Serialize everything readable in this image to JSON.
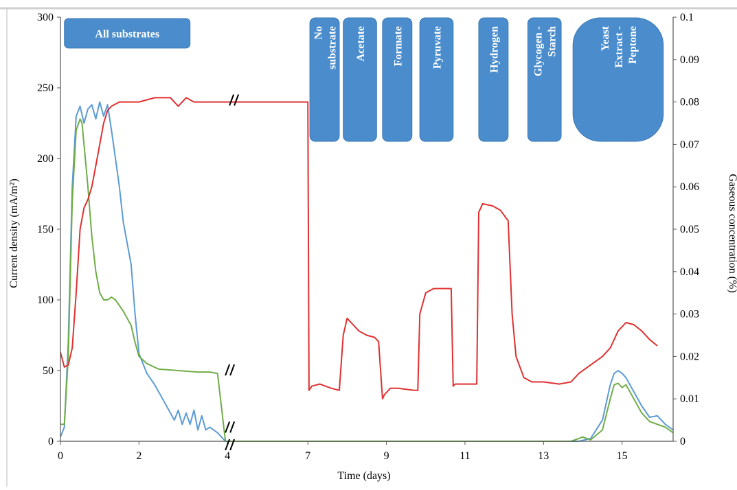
{
  "chart_data": {
    "type": "line",
    "xlabel": "Time (days)",
    "ylabel": "Current density (mA/m²)",
    "y2label": "Gaseous concentration (%)",
    "x_ticks": [
      "0",
      "2",
      "4",
      "7",
      "9",
      "11",
      "13",
      "15"
    ],
    "x_range": [
      0,
      15.6
    ],
    "x_break": [
      4.2,
      6.3
    ],
    "ylim": [
      0,
      300
    ],
    "y_ticks": [
      "0",
      "50",
      "100",
      "150",
      "200",
      "250",
      "300"
    ],
    "y2lim": [
      0,
      0.1
    ],
    "y2_ticks": [
      "0",
      "0.01",
      "0.02",
      "0.03",
      "0.04",
      "0.05",
      "0.06",
      "0.07",
      "0.08",
      "0.09",
      "0.1"
    ],
    "grid": false,
    "legend": "none",
    "colors": {
      "blue": "#5b9bd5",
      "red": "#e03030",
      "green": "#70ad47",
      "box": "#4a8ccc"
    },
    "annotations": [
      {
        "label": "All substrates",
        "x_start": 0.1,
        "x_end": 3.3,
        "orientation": "horizontal"
      },
      {
        "label": "No substrate",
        "x_start": 6.35,
        "x_end": 7.1,
        "orientation": "vertical"
      },
      {
        "label": "Acetate",
        "x_start": 7.2,
        "x_end": 8.05,
        "orientation": "vertical"
      },
      {
        "label": "Formate",
        "x_start": 8.2,
        "x_end": 8.95,
        "orientation": "vertical"
      },
      {
        "label": "Pyruvate",
        "x_start": 9.15,
        "x_end": 10.0,
        "orientation": "vertical"
      },
      {
        "label": "Hydrogen",
        "x_start": 10.65,
        "x_end": 11.4,
        "orientation": "vertical"
      },
      {
        "label": "Glycogen - Starch",
        "x_start": 11.9,
        "x_end": 12.75,
        "orientation": "vertical"
      },
      {
        "label": "Yeast Extract - Peptone",
        "x_start": 13.05,
        "x_end": 15.35,
        "orientation": "vertical"
      }
    ],
    "series": [
      {
        "color": "blue",
        "axis": "left",
        "x": [
          0,
          0.1,
          0.2,
          0.3,
          0.4,
          0.5,
          0.6,
          0.7,
          0.8,
          0.9,
          1.0,
          1.1,
          1.2,
          1.3,
          1.4,
          1.5,
          1.6,
          1.7,
          1.8,
          1.9,
          2.0,
          2.1,
          2.2,
          2.4,
          2.6,
          2.8,
          2.9,
          3.0,
          3.1,
          3.2,
          3.3,
          3.4,
          3.5,
          3.6,
          3.7,
          3.8,
          3.9,
          4.0,
          4.2,
          6.3,
          6.5,
          7.0,
          8.0,
          9.0,
          10.0,
          11.0,
          12.0,
          13.0,
          13.2,
          13.5,
          13.8,
          14.0,
          14.1,
          14.2,
          14.3,
          14.4,
          14.6,
          14.8,
          15.0,
          15.2,
          15.4,
          15.6
        ],
        "y": [
          3,
          10,
          70,
          180,
          230,
          237,
          225,
          235,
          238,
          228,
          240,
          230,
          238,
          220,
          200,
          180,
          155,
          140,
          125,
          90,
          62,
          55,
          48,
          40,
          30,
          20,
          15,
          22,
          12,
          20,
          12,
          22,
          8,
          18,
          8,
          10,
          8,
          6,
          0,
          0,
          0,
          0,
          0,
          0,
          0,
          0,
          0,
          0,
          0,
          2,
          15,
          40,
          48,
          50,
          48,
          45,
          35,
          25,
          17,
          18,
          12,
          8
        ]
      },
      {
        "color": "green",
        "axis": "left",
        "x": [
          0,
          0.1,
          0.2,
          0.3,
          0.4,
          0.5,
          0.55,
          0.6,
          0.7,
          0.8,
          0.9,
          1.0,
          1.1,
          1.2,
          1.3,
          1.4,
          1.5,
          1.6,
          1.7,
          1.8,
          1.9,
          2.0,
          2.2,
          2.5,
          3.0,
          3.5,
          3.8,
          4.0,
          4.2,
          6.3,
          7.0,
          8.0,
          9.0,
          10.0,
          11.0,
          12.0,
          13.0,
          13.2,
          13.3,
          13.5,
          13.8,
          14.0,
          14.1,
          14.2,
          14.3,
          14.4,
          14.6,
          14.8,
          15.0,
          15.2,
          15.4,
          15.6
        ],
        "y": [
          12,
          12,
          60,
          170,
          220,
          228,
          225,
          210,
          180,
          145,
          120,
          105,
          100,
          100,
          102,
          100,
          96,
          92,
          87,
          82,
          70,
          60,
          55,
          51,
          50,
          49,
          49,
          48,
          0,
          0,
          0,
          0,
          0,
          0,
          0,
          0,
          0,
          2,
          3,
          1,
          8,
          30,
          40,
          41,
          38,
          40,
          30,
          20,
          14,
          12,
          10,
          6
        ]
      },
      {
        "color": "red",
        "axis": "right",
        "x": [
          0,
          0.1,
          0.2,
          0.3,
          0.4,
          0.5,
          0.6,
          0.7,
          0.8,
          0.9,
          1.0,
          1.1,
          1.2,
          1.3,
          1.5,
          1.7,
          2.0,
          2.4,
          2.8,
          3.0,
          3.2,
          3.4,
          3.7,
          4.0,
          4.2,
          6.3,
          6.33,
          6.4,
          6.6,
          6.9,
          7.1,
          7.2,
          7.3,
          7.4,
          7.6,
          7.8,
          8.0,
          8.1,
          8.2,
          8.25,
          8.4,
          8.6,
          9.0,
          9.1,
          9.15,
          9.3,
          9.5,
          9.7,
          9.95,
          10.0,
          10.05,
          10.3,
          10.6,
          10.65,
          10.75,
          11.0,
          11.2,
          11.4,
          11.5,
          11.6,
          11.8,
          12.0,
          12.3,
          12.7,
          13.0,
          13.2,
          13.5,
          13.8,
          14.0,
          14.2,
          14.4,
          14.6,
          14.8,
          15.0,
          15.2
        ],
        "y": [
          0.021,
          0.0175,
          0.018,
          0.022,
          0.035,
          0.05,
          0.055,
          0.057,
          0.06,
          0.065,
          0.07,
          0.075,
          0.078,
          0.079,
          0.08,
          0.08,
          0.08,
          0.081,
          0.081,
          0.079,
          0.081,
          0.08,
          0.08,
          0.08,
          0.08,
          0.08,
          0.012,
          0.013,
          0.0135,
          0.0125,
          0.012,
          0.025,
          0.029,
          0.028,
          0.026,
          0.025,
          0.0245,
          0.0235,
          0.01,
          0.011,
          0.0125,
          0.0125,
          0.012,
          0.012,
          0.03,
          0.035,
          0.036,
          0.036,
          0.036,
          0.013,
          0.0135,
          0.0135,
          0.0135,
          0.054,
          0.056,
          0.0555,
          0.0545,
          0.052,
          0.03,
          0.02,
          0.015,
          0.014,
          0.014,
          0.0135,
          0.014,
          0.016,
          0.018,
          0.02,
          0.022,
          0.026,
          0.028,
          0.0275,
          0.026,
          0.024,
          0.0225
        ]
      }
    ]
  }
}
